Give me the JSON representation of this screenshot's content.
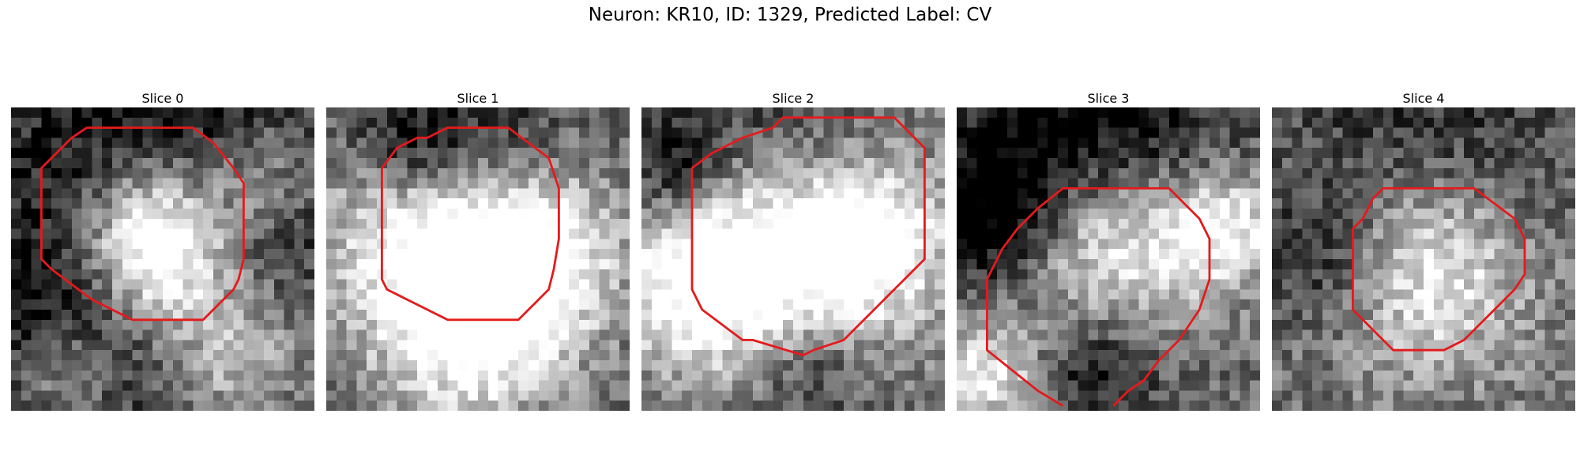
{
  "figure": {
    "title": "Neuron: KR10, ID: 1329, Predicted Label: CV"
  },
  "panels": [
    {
      "title": "Slice 0",
      "seed": 11,
      "overlay_color": "#e41a1c"
    },
    {
      "title": "Slice 1",
      "seed": 23,
      "overlay_color": "#e41a1c"
    },
    {
      "title": "Slice 2",
      "seed": 37,
      "overlay_color": "#e41a1c"
    },
    {
      "title": "Slice 3",
      "seed": 51,
      "overlay_color": "#e41a1c"
    },
    {
      "title": "Slice 4",
      "seed": 67,
      "overlay_color": "#e41a1c"
    }
  ]
}
